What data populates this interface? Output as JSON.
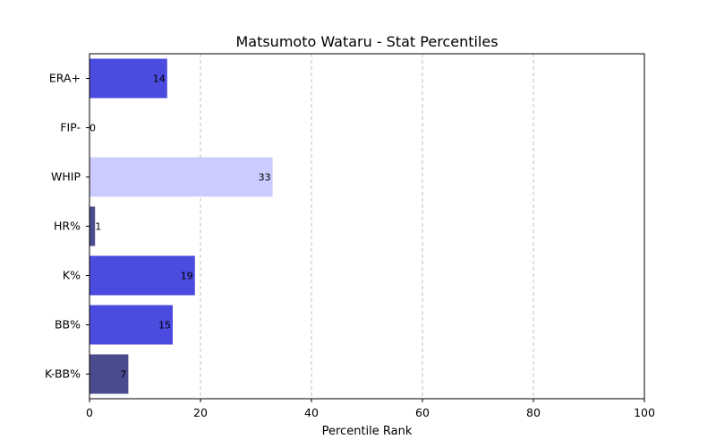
{
  "chart_data": {
    "type": "bar",
    "orientation": "horizontal",
    "title": "Matsumoto Wataru - Stat Percentiles",
    "xlabel": "Percentile Rank",
    "ylabel": "",
    "xlim": [
      0,
      100
    ],
    "xticks": [
      0,
      20,
      40,
      60,
      80,
      100
    ],
    "grid": "x-dashed",
    "categories": [
      "ERA+",
      "FIP-",
      "WHIP",
      "HR%",
      "K%",
      "BB%",
      "K-BB%"
    ],
    "values": [
      14,
      0,
      33,
      1,
      19,
      15,
      7
    ],
    "colors": [
      "#4b4bdf",
      "#4b4bdf",
      "#cccbff",
      "#4b4b90",
      "#4b4bdf",
      "#4b4bdf",
      "#4b4b90"
    ]
  }
}
